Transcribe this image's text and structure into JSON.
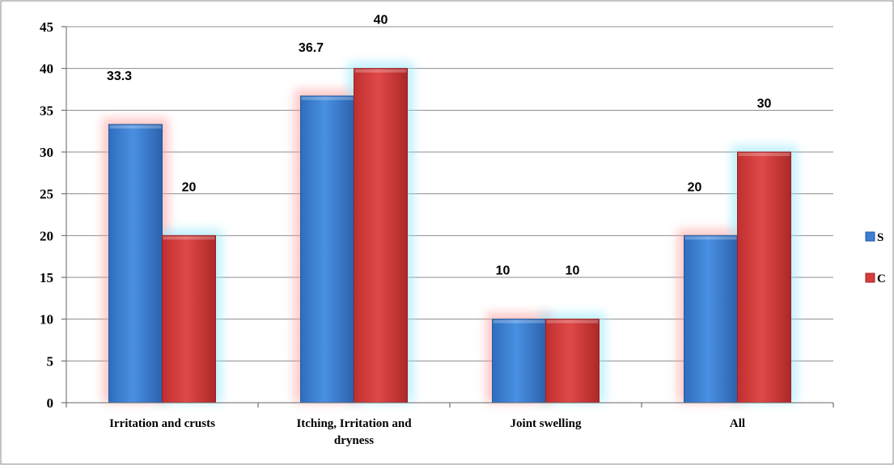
{
  "chart_data": {
    "type": "bar",
    "categories": [
      "Irritation and crusts",
      "Itching, Irritation and\ndryness",
      "Joint swelling",
      "All"
    ],
    "series": [
      {
        "name": "S",
        "values": [
          33.3,
          36.7,
          10,
          20
        ],
        "color": "#3a7fd3",
        "glow": "#ff9a9a"
      },
      {
        "name": "C",
        "values": [
          20,
          40,
          10,
          30
        ],
        "color": "#d83c3c",
        "glow": "#8fe6fb"
      }
    ],
    "data_labels": [
      [
        "33.3",
        "36.7",
        "10",
        "20"
      ],
      [
        "20",
        "40",
        "10",
        "30"
      ]
    ],
    "ylim": [
      0,
      45
    ],
    "yticks": [
      0,
      5,
      10,
      15,
      20,
      25,
      30,
      35,
      40,
      45
    ],
    "grid": true,
    "legend": "right",
    "title": "",
    "xlabel": "",
    "ylabel": ""
  }
}
